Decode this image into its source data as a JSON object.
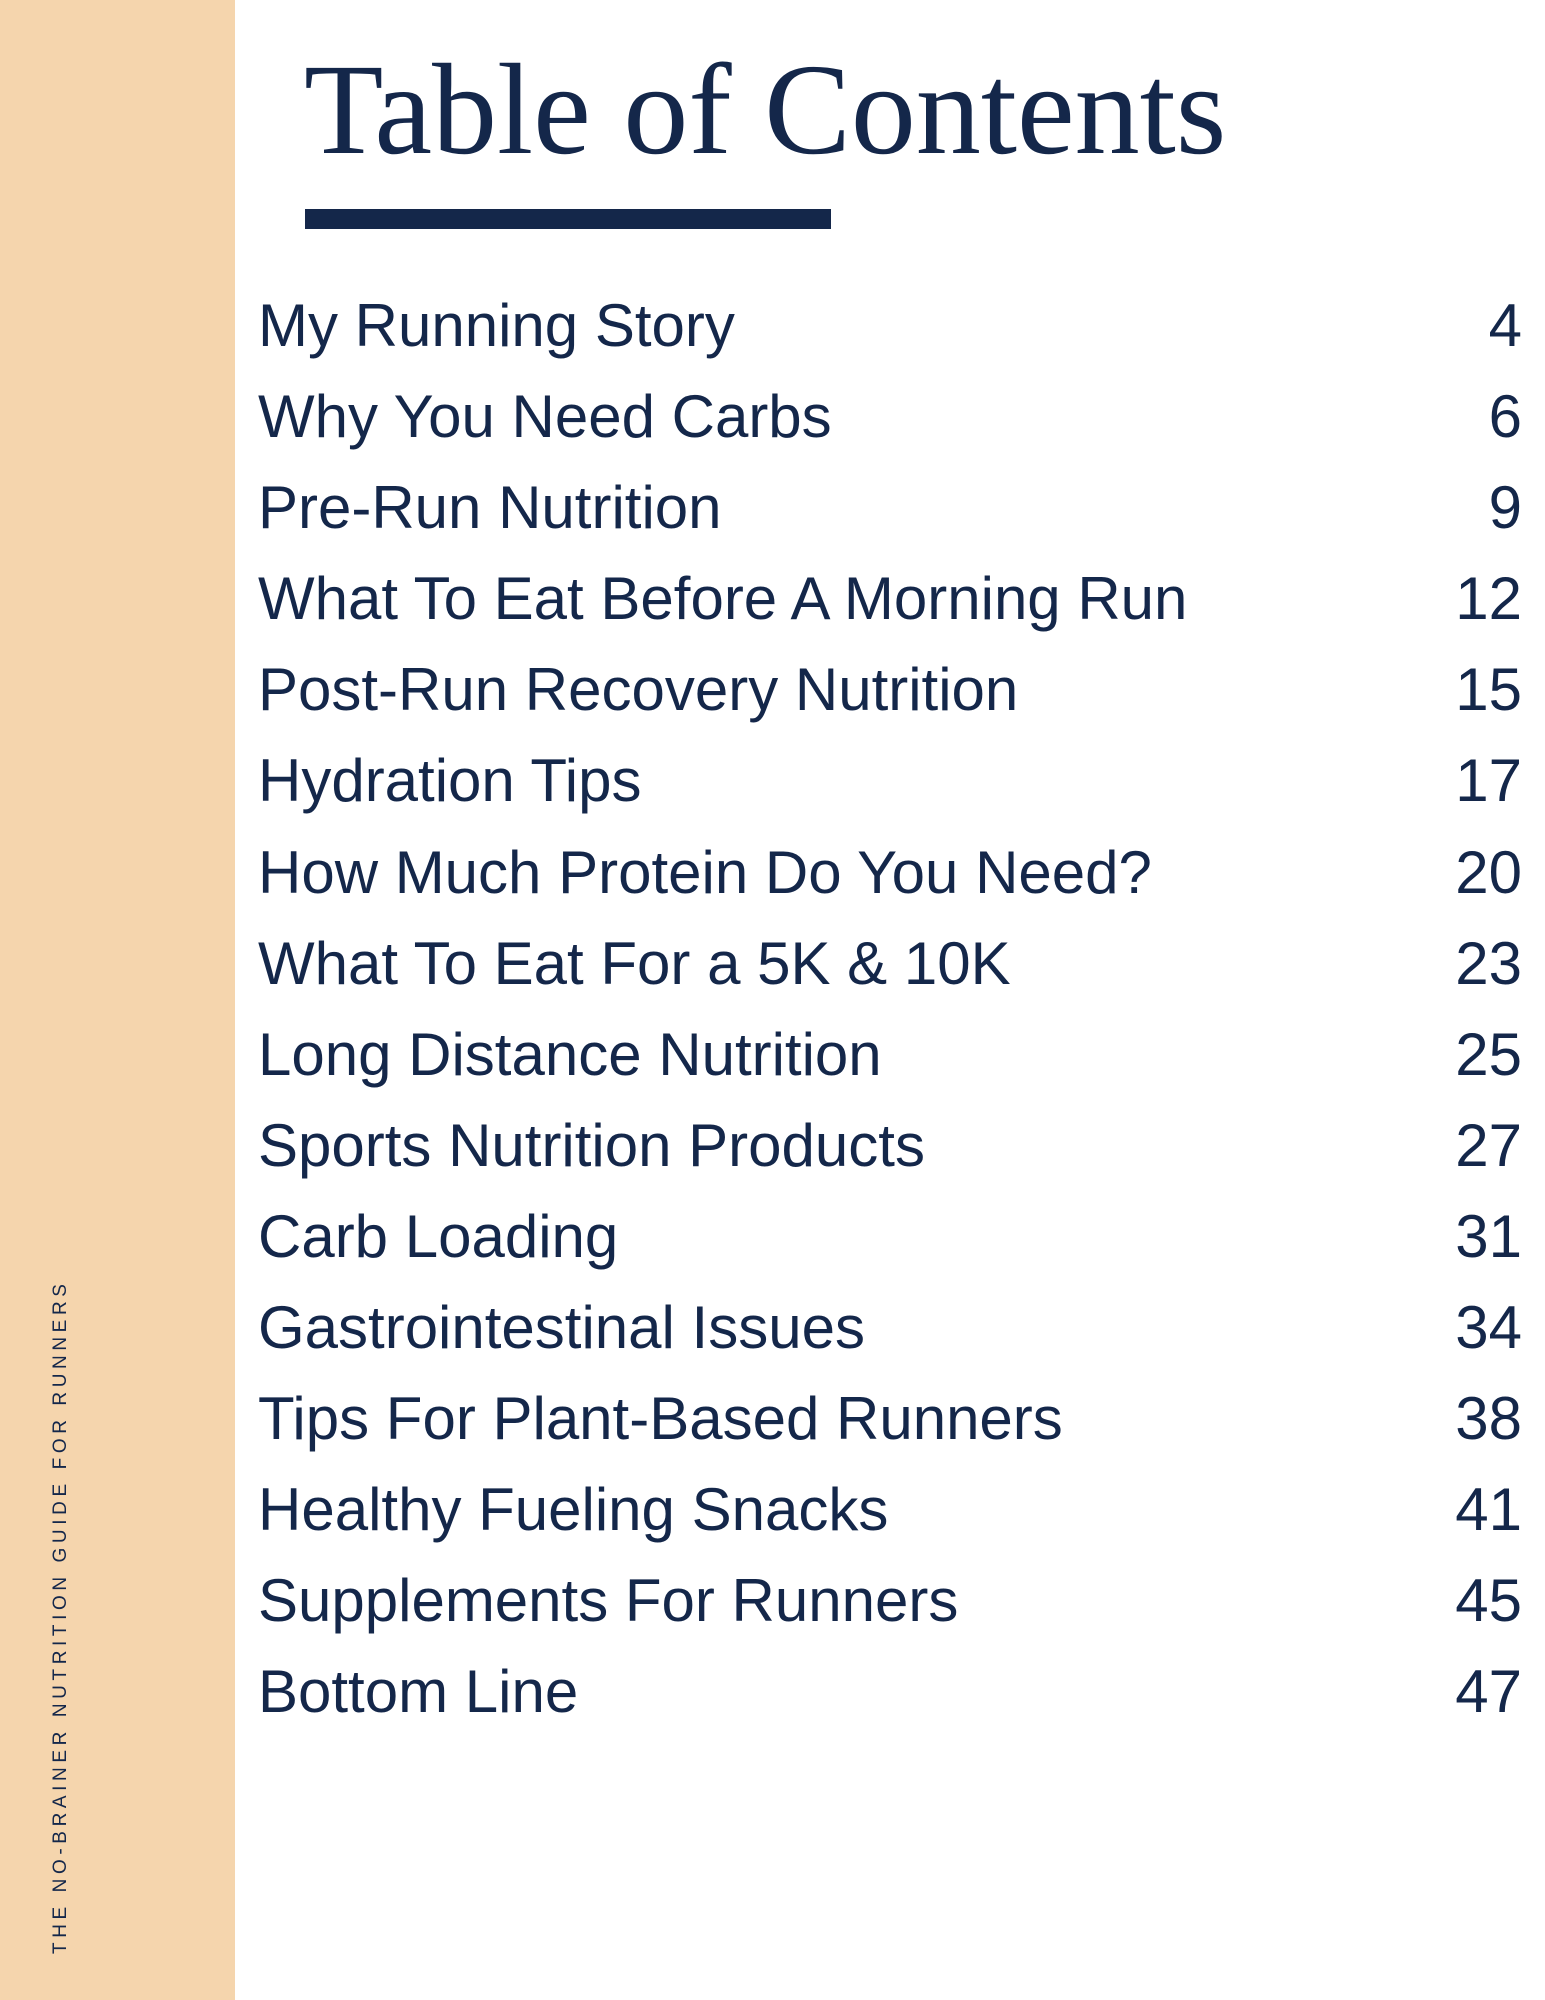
{
  "sidebar": {
    "vertical_text": "THE NO-BRAINER NUTRITION GUIDE FOR RUNNERS"
  },
  "title": "Table of Contents",
  "entries": [
    {
      "label": "My Running Story",
      "page": "4"
    },
    {
      "label": "Why You Need Carbs",
      "page": "6"
    },
    {
      "label": "Pre-Run Nutrition",
      "page": "9"
    },
    {
      "label": "What To Eat Before A Morning Run",
      "page": "12"
    },
    {
      "label": "Post-Run Recovery Nutrition",
      "page": "15"
    },
    {
      "label": "Hydration Tips",
      "page": "17"
    },
    {
      "label": "How Much Protein Do You Need?",
      "page": "20"
    },
    {
      "label": "What To Eat For a 5K & 10K",
      "page": "23"
    },
    {
      "label": "Long Distance Nutrition",
      "page": "25"
    },
    {
      "label": "Sports Nutrition Products",
      "page": "27"
    },
    {
      "label": "Carb Loading",
      "page": "31"
    },
    {
      "label": "Gastrointestinal Issues",
      "page": "34"
    },
    {
      "label": "Tips For Plant-Based Runners",
      "page": "38"
    },
    {
      "label": "Healthy Fueling Snacks",
      "page": "41"
    },
    {
      "label": "Supplements For Runners",
      "page": "45"
    },
    {
      "label": "Bottom Line",
      "page": "47"
    }
  ],
  "colors": {
    "navy": "#14274a",
    "sidebar": "#f5d5ad"
  }
}
